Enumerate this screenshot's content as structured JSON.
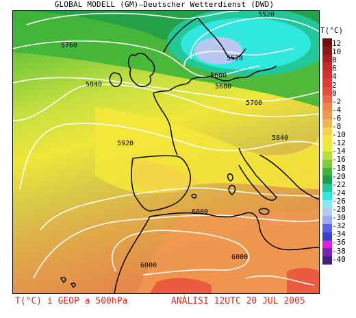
{
  "title": "GLOBAL MODELL (GM)—Deutscher Wetterdienst (DWD)",
  "legend_unit": "T(°C)",
  "legend_ticks": [
    "12",
    "10",
    "8",
    "6",
    "4",
    "2",
    "0",
    "-2",
    "-4",
    "-6",
    "-8",
    "-10",
    "-12",
    "-14",
    "-16",
    "-18",
    "-20",
    "-22",
    "-24",
    "-26",
    "-28",
    "-30",
    "-32",
    "-34",
    "-36",
    "-38",
    "-40"
  ],
  "legend_colors": [
    "#6b1010",
    "#8b1a1a",
    "#a82020",
    "#c42a2a",
    "#d83030",
    "#e03a3a",
    "#e84c3c",
    "#ef6a44",
    "#f2844a",
    "#f19a52",
    "#f0b45a",
    "#f4d24a",
    "#f6e83a",
    "#e8ef3a",
    "#b8df3a",
    "#7fcb3a",
    "#3fb43a",
    "#1f9e4a",
    "#22c89a",
    "#30e8e0",
    "#88e8f0",
    "#b8c8f0",
    "#a0a8f0",
    "#6060e8",
    "#4040d0",
    "#e020e0",
    "#8020b0",
    "#402080"
  ],
  "contour_labels": [
    "5520",
    "5520",
    "5600",
    "5680",
    "5760",
    "5760",
    "5840",
    "5840",
    "5920",
    "6000",
    "6000",
    "6000"
  ],
  "footer_left": "T(°C) i GEOP a 500hPa",
  "footer_right": "ANÀLISI 12UTC 20 JUL 2005"
}
